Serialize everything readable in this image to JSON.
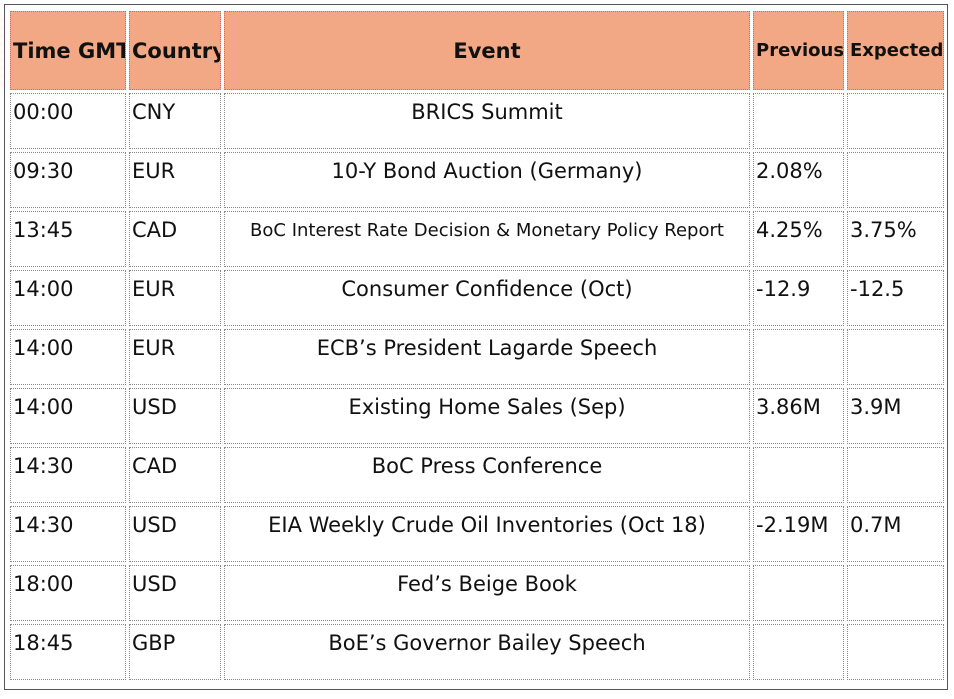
{
  "table": {
    "headers": [
      "Time GMT",
      "Country",
      "Event",
      "Previous",
      "Expected"
    ],
    "rows": [
      {
        "time": "00:00",
        "country": "CNY",
        "event": "BRICS Summit",
        "previous": "",
        "expected": ""
      },
      {
        "time": "09:30",
        "country": "EUR",
        "event": "10-Y Bond Auction (Germany)",
        "previous": "2.08%",
        "expected": ""
      },
      {
        "time": "13:45",
        "country": "CAD",
        "event": "BoC Interest Rate Decision & Monetary Policy Report",
        "previous": "4.25%",
        "expected": "3.75%"
      },
      {
        "time": "14:00",
        "country": "EUR",
        "event": "Consumer Confidence (Oct)",
        "previous": "-12.9",
        "expected": "-12.5"
      },
      {
        "time": "14:00",
        "country": "EUR",
        "event": "ECB’s President Lagarde Speech",
        "previous": "",
        "expected": ""
      },
      {
        "time": "14:00",
        "country": "USD",
        "event": "Existing Home Sales (Sep)",
        "previous": "3.86M",
        "expected": "3.9M"
      },
      {
        "time": "14:30",
        "country": "CAD",
        "event": "BoC Press Conference",
        "previous": "",
        "expected": ""
      },
      {
        "time": "14:30",
        "country": "USD",
        "event": "EIA Weekly Crude Oil Inventories (Oct 18)",
        "previous": "-2.19M",
        "expected": "0.7M"
      },
      {
        "time": "18:00",
        "country": "USD",
        "event": "Fed’s Beige Book",
        "previous": "",
        "expected": ""
      },
      {
        "time": "18:45",
        "country": "GBP",
        "event": "BoE’s Governor Bailey Speech",
        "previous": "",
        "expected": ""
      }
    ]
  },
  "colors": {
    "header_background": "#f2a884"
  }
}
